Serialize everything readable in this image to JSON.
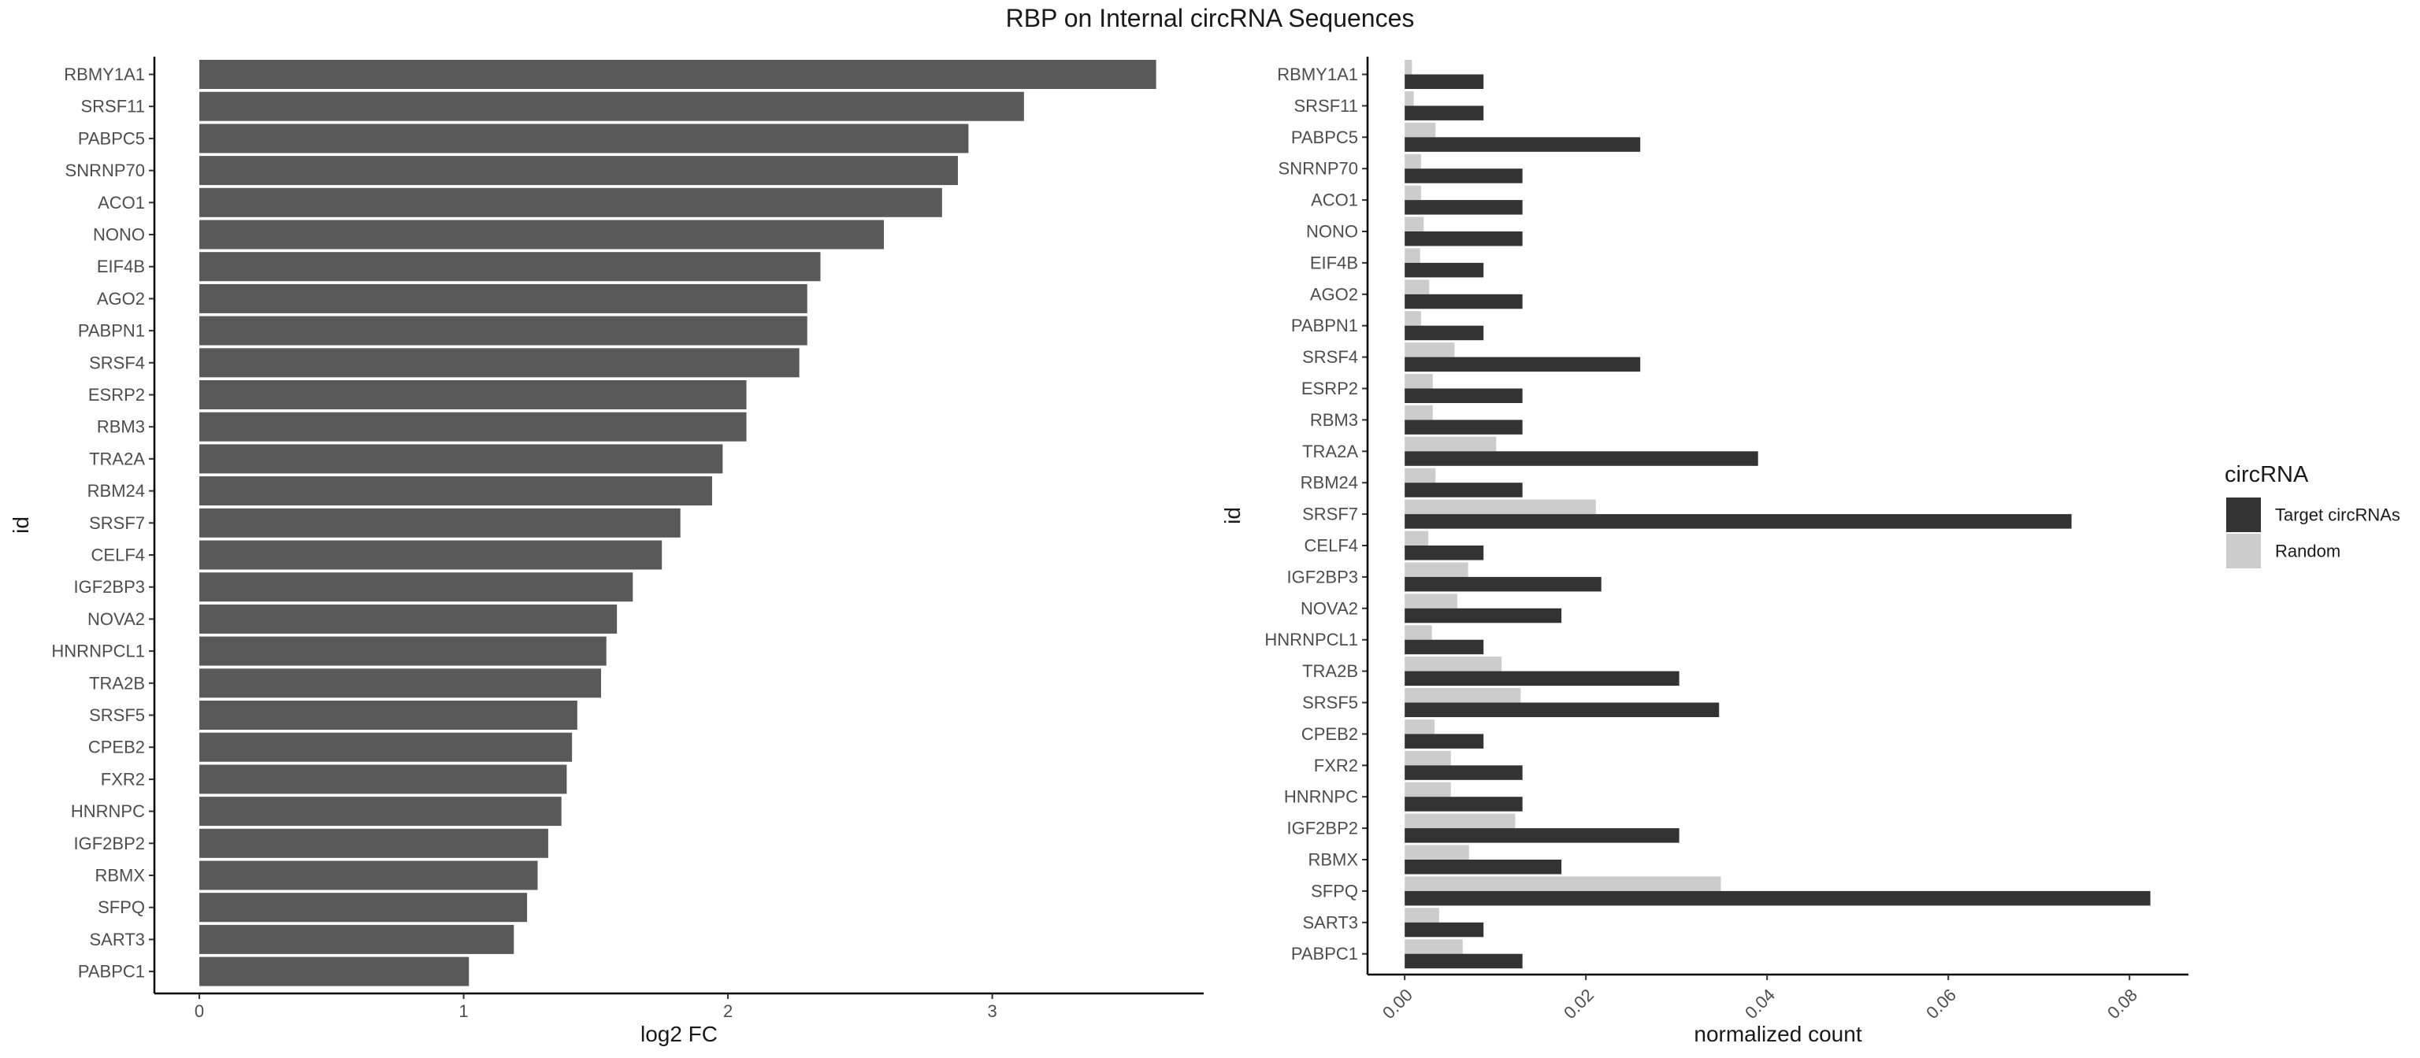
{
  "title": "RBP on Internal circRNA Sequences",
  "chart_data": [
    {
      "type": "bar",
      "orientation": "horizontal",
      "categories": [
        "RBMY1A1",
        "SRSF11",
        "PABPC5",
        "SNRNP70",
        "ACO1",
        "NONO",
        "EIF4B",
        "AGO2",
        "PABPN1",
        "SRSF4",
        "ESRP2",
        "RBM3",
        "TRA2A",
        "RBM24",
        "SRSF7",
        "CELF4",
        "IGF2BP3",
        "NOVA2",
        "HNRNPCL1",
        "TRA2B",
        "SRSF5",
        "CPEB2",
        "FXR2",
        "HNRNPC",
        "IGF2BP2",
        "RBMX",
        "SFPQ",
        "SART3",
        "PABPC1"
      ],
      "values": [
        3.62,
        3.12,
        2.91,
        2.87,
        2.81,
        2.59,
        2.35,
        2.3,
        2.3,
        2.27,
        2.07,
        2.07,
        1.98,
        1.94,
        1.82,
        1.75,
        1.64,
        1.58,
        1.54,
        1.52,
        1.43,
        1.41,
        1.39,
        1.37,
        1.32,
        1.28,
        1.24,
        1.19,
        1.02
      ],
      "xlabel": "log2 FC",
      "ylabel": "id",
      "xlim": [
        -0.17,
        3.8
      ],
      "xticks": [
        "0",
        "1",
        "2",
        "3"
      ],
      "bar_color": "#595959",
      "grid": false
    },
    {
      "type": "bar",
      "orientation": "horizontal",
      "grouped": true,
      "categories": [
        "RBMY1A1",
        "SRSF11",
        "PABPC5",
        "SNRNP70",
        "ACO1",
        "NONO",
        "EIF4B",
        "AGO2",
        "PABPN1",
        "SRSF4",
        "ESRP2",
        "RBM3",
        "TRA2A",
        "RBM24",
        "SRSF7",
        "CELF4",
        "IGF2BP3",
        "NOVA2",
        "HNRNPCL1",
        "TRA2B",
        "SRSF5",
        "CPEB2",
        "FXR2",
        "HNRNPC",
        "IGF2BP2",
        "RBMX",
        "SFPQ",
        "SART3",
        "PABPC1"
      ],
      "series": [
        {
          "name": "Target circRNAs",
          "color": "#333333",
          "values": [
            0.0087,
            0.0087,
            0.026,
            0.013,
            0.013,
            0.013,
            0.0087,
            0.013,
            0.0087,
            0.026,
            0.013,
            0.013,
            0.039,
            0.013,
            0.0736,
            0.0087,
            0.0217,
            0.0173,
            0.0087,
            0.0303,
            0.0347,
            0.0087,
            0.013,
            0.013,
            0.0303,
            0.0173,
            0.0823,
            0.0087,
            0.013
          ]
        },
        {
          "name": "Random",
          "color": "#cccccc",
          "values": [
            0.0008,
            0.001,
            0.0034,
            0.0018,
            0.0018,
            0.0021,
            0.0017,
            0.0027,
            0.0018,
            0.0055,
            0.0031,
            0.0031,
            0.0101,
            0.0034,
            0.0211,
            0.0026,
            0.007,
            0.0058,
            0.003,
            0.0107,
            0.0128,
            0.0033,
            0.0051,
            0.0051,
            0.0122,
            0.0071,
            0.0349,
            0.0038,
            0.0064
          ]
        }
      ],
      "xlabel": "normalized count",
      "ylabel": "id",
      "xlim": [
        -0.0041,
        0.0865
      ],
      "xticks": [
        "0.00",
        "0.02",
        "0.04",
        "0.06",
        "0.08"
      ],
      "legend_title": "circRNA",
      "legend_position": "right",
      "grid": false
    }
  ]
}
